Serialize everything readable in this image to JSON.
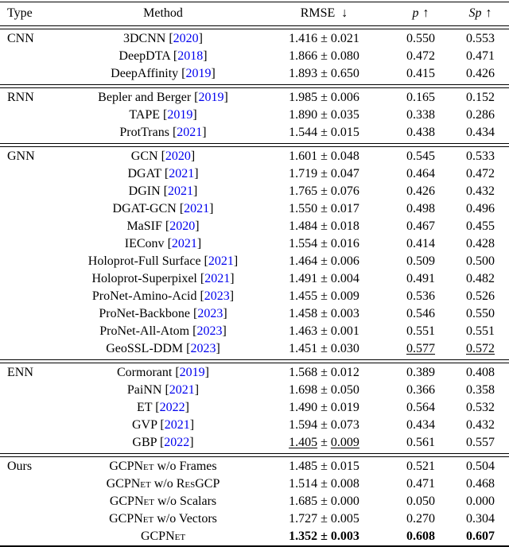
{
  "table": {
    "colors": {
      "citation": "#0000EE",
      "text": "#000000",
      "rule": "#000000"
    },
    "headers": {
      "type": "Type",
      "method": "Method",
      "rmse": "RMSE",
      "down_arrow": "↓",
      "p": "p",
      "sp": "Sp",
      "up_arrow": "↑"
    },
    "groups": [
      {
        "type": "CNN",
        "rows": [
          {
            "m": "3DCNN",
            "y": "2020",
            "rmse": [
              "1.416",
              "0.021"
            ],
            "p": "0.550",
            "sp": "0.553"
          },
          {
            "m": "DeepDTA",
            "y": "2018",
            "rmse": [
              "1.866",
              "0.080"
            ],
            "p": "0.472",
            "sp": "0.471"
          },
          {
            "m": "DeepAffinity",
            "y": "2019",
            "rmse": [
              "1.893",
              "0.650"
            ],
            "p": "0.415",
            "sp": "0.426"
          }
        ]
      },
      {
        "type": "RNN",
        "rows": [
          {
            "m": "Bepler and Berger",
            "y": "2019",
            "rmse": [
              "1.985",
              "0.006"
            ],
            "p": "0.165",
            "sp": "0.152"
          },
          {
            "m": "TAPE",
            "y": "2019",
            "rmse": [
              "1.890",
              "0.035"
            ],
            "p": "0.338",
            "sp": "0.286"
          },
          {
            "m": "ProtTrans",
            "y": "2021",
            "rmse": [
              "1.544",
              "0.015"
            ],
            "p": "0.438",
            "sp": "0.434"
          }
        ]
      },
      {
        "type": "GNN",
        "rows": [
          {
            "m": "GCN",
            "y": "2020",
            "rmse": [
              "1.601",
              "0.048"
            ],
            "p": "0.545",
            "sp": "0.533"
          },
          {
            "m": "DGAT",
            "y": "2021",
            "rmse": [
              "1.719",
              "0.047"
            ],
            "p": "0.464",
            "sp": "0.472"
          },
          {
            "m": "DGIN",
            "y": "2021",
            "rmse": [
              "1.765",
              "0.076"
            ],
            "p": "0.426",
            "sp": "0.432"
          },
          {
            "m": "DGAT-GCN",
            "y": "2021",
            "rmse": [
              "1.550",
              "0.017"
            ],
            "p": "0.498",
            "sp": "0.496"
          },
          {
            "m": "MaSIF",
            "y": "2020",
            "rmse": [
              "1.484",
              "0.018"
            ],
            "p": "0.467",
            "sp": "0.455"
          },
          {
            "m": "IEConv",
            "y": "2021",
            "rmse": [
              "1.554",
              "0.016"
            ],
            "p": "0.414",
            "sp": "0.428"
          },
          {
            "m": "Holoprot-Full Surface",
            "y": "2021",
            "rmse": [
              "1.464",
              "0.006"
            ],
            "p": "0.509",
            "sp": "0.500"
          },
          {
            "m": "Holoprot-Superpixel",
            "y": "2021",
            "rmse": [
              "1.491",
              "0.004"
            ],
            "p": "0.491",
            "sp": "0.482"
          },
          {
            "m": "ProNet-Amino-Acid",
            "y": "2023",
            "rmse": [
              "1.455",
              "0.009"
            ],
            "p": "0.536",
            "sp": "0.526"
          },
          {
            "m": "ProNet-Backbone",
            "y": "2023",
            "rmse": [
              "1.458",
              "0.003"
            ],
            "p": "0.546",
            "sp": "0.550"
          },
          {
            "m": "ProNet-All-Atom",
            "y": "2023",
            "rmse": [
              "1.463",
              "0.001"
            ],
            "p": "0.551",
            "sp": "0.551"
          },
          {
            "m": "GeoSSL-DDM",
            "y": "2023",
            "rmse": [
              "1.451",
              "0.030"
            ],
            "p": "0.577",
            "sp": "0.572",
            "u_p": true,
            "u_sp": true
          }
        ]
      },
      {
        "type": "ENN",
        "rows": [
          {
            "m": "Cormorant",
            "y": "2019",
            "rmse": [
              "1.568",
              "0.012"
            ],
            "p": "0.389",
            "sp": "0.408"
          },
          {
            "m": "PaiNN",
            "y": "2021",
            "rmse": [
              "1.698",
              "0.050"
            ],
            "p": "0.366",
            "sp": "0.358"
          },
          {
            "m": "ET",
            "y": "2022",
            "rmse": [
              "1.490",
              "0.019"
            ],
            "p": "0.564",
            "sp": "0.532"
          },
          {
            "m": "GVP",
            "y": "2021",
            "rmse": [
              "1.594",
              "0.073"
            ],
            "p": "0.434",
            "sp": "0.432"
          },
          {
            "m": "GBP",
            "y": "2022",
            "rmse": [
              "1.405",
              "0.009"
            ],
            "p": "0.561",
            "sp": "0.557",
            "u_rmse": true
          }
        ]
      },
      {
        "type": "Ours",
        "rows": [
          {
            "m": [
              {
                "t": "GCPNet",
                "sc": true
              },
              {
                "t": " w/o Frames"
              }
            ],
            "rmse": [
              "1.485",
              "0.015"
            ],
            "p": "0.521",
            "sp": "0.504"
          },
          {
            "m": [
              {
                "t": "GCPNet",
                "sc": true
              },
              {
                "t": " w/o "
              },
              {
                "t": "Res",
                "sc": true
              },
              {
                "t": "GCP"
              }
            ],
            "rmse": [
              "1.514",
              "0.008"
            ],
            "p": "0.471",
            "sp": "0.468"
          },
          {
            "m": [
              {
                "t": "GCPNet",
                "sc": true
              },
              {
                "t": " w/o Scalars"
              }
            ],
            "rmse": [
              "1.685",
              "0.000"
            ],
            "p": "0.050",
            "sp": "0.000"
          },
          {
            "m": [
              {
                "t": "GCPNet",
                "sc": true
              },
              {
                "t": " w/o Vectors"
              }
            ],
            "rmse": [
              "1.727",
              "0.005"
            ],
            "p": "0.270",
            "sp": "0.304"
          },
          {
            "m": [
              {
                "t": "GCPNet",
                "sc": true
              }
            ],
            "rmse": [
              "1.352",
              "0.003"
            ],
            "p": "0.608",
            "sp": "0.607",
            "bold": true
          }
        ]
      }
    ],
    "pm_symbol": "±"
  }
}
